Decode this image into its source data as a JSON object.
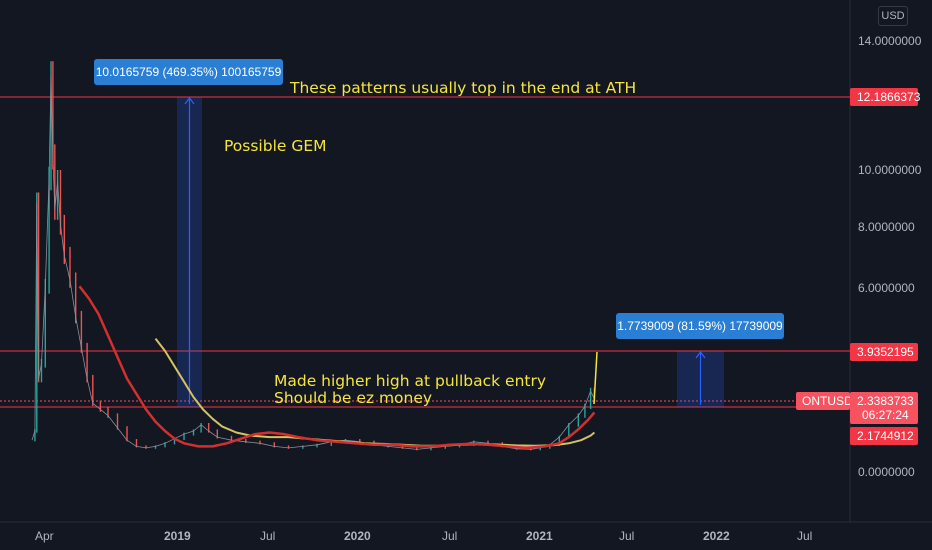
{
  "currency": "USD",
  "chart_data": {
    "type": "candlestick",
    "symbol": "ONTUSD",
    "y_axis": {
      "ticks": [
        "14.0000000",
        "10.0000000",
        "8.0000000",
        "6.0000000",
        "0.0000000"
      ],
      "tick_values": [
        14,
        10,
        8,
        6,
        0
      ]
    },
    "x_axis": {
      "ticks": [
        {
          "label": "Apr",
          "bold": false
        },
        {
          "label": "2019",
          "bold": true
        },
        {
          "label": "Jul",
          "bold": false
        },
        {
          "label": "2020",
          "bold": true
        },
        {
          "label": "Jul",
          "bold": false
        },
        {
          "label": "2021",
          "bold": true
        },
        {
          "label": "Jul",
          "bold": false
        },
        {
          "label": "2022",
          "bold": true
        },
        {
          "label": "Jul",
          "bold": false
        }
      ]
    },
    "price_lines": [
      {
        "label": "12.1866373",
        "value": 12.1866373,
        "color": "#f23645"
      },
      {
        "label": "3.9352195",
        "value": 3.9352195,
        "color": "#f23645"
      },
      {
        "label": "2.1744912",
        "value": 2.1744912,
        "color": "#f23645"
      }
    ],
    "current_price": {
      "symbol": "ONTUSD",
      "value": "2.3383733",
      "countdown": "06:27:24",
      "color": "#f7525f"
    },
    "measurements": [
      {
        "label": "10.0165759 (469.35%) 100165759"
      },
      {
        "label": "1.7739009 (81.59%) 17739009"
      }
    ],
    "annotations": [
      "These patterns usually top in the end at ATH",
      "Possible GEM",
      "Made higher high at pullback entry",
      "Should be ez money"
    ],
    "price_series": [
      {
        "t": 0,
        "v": 1.0
      },
      {
        "t": 3,
        "v": 1.3
      },
      {
        "t": 5,
        "v": 8.7
      },
      {
        "t": 7,
        "v": 3.0
      },
      {
        "t": 10,
        "v": 3.5
      },
      {
        "t": 14,
        "v": 6.0
      },
      {
        "t": 18,
        "v": 9.5
      },
      {
        "t": 20,
        "v": 12.8
      },
      {
        "t": 22,
        "v": 10.2
      },
      {
        "t": 24,
        "v": 8.5
      },
      {
        "t": 27,
        "v": 9.4
      },
      {
        "t": 30,
        "v": 8.0
      },
      {
        "t": 34,
        "v": 7.0
      },
      {
        "t": 40,
        "v": 6.2
      },
      {
        "t": 46,
        "v": 5.0
      },
      {
        "t": 52,
        "v": 4.0
      },
      {
        "t": 58,
        "v": 3.0
      },
      {
        "t": 64,
        "v": 2.2
      },
      {
        "t": 72,
        "v": 2.0
      },
      {
        "t": 80,
        "v": 1.8
      },
      {
        "t": 90,
        "v": 1.4
      },
      {
        "t": 100,
        "v": 1.0
      },
      {
        "t": 110,
        "v": 0.8
      },
      {
        "t": 120,
        "v": 0.75
      },
      {
        "t": 130,
        "v": 0.8
      },
      {
        "t": 140,
        "v": 0.9
      },
      {
        "t": 150,
        "v": 1.05
      },
      {
        "t": 160,
        "v": 1.2
      },
      {
        "t": 170,
        "v": 1.3
      },
      {
        "t": 178,
        "v": 1.5
      },
      {
        "t": 186,
        "v": 1.3
      },
      {
        "t": 195,
        "v": 1.1
      },
      {
        "t": 210,
        "v": 1.0
      },
      {
        "t": 225,
        "v": 0.95
      },
      {
        "t": 240,
        "v": 0.9
      },
      {
        "t": 255,
        "v": 0.8
      },
      {
        "t": 270,
        "v": 0.75
      },
      {
        "t": 285,
        "v": 0.8
      },
      {
        "t": 300,
        "v": 0.85
      },
      {
        "t": 315,
        "v": 0.95
      },
      {
        "t": 330,
        "v": 1.0
      },
      {
        "t": 345,
        "v": 0.95
      },
      {
        "t": 360,
        "v": 0.85
      },
      {
        "t": 375,
        "v": 0.8
      },
      {
        "t": 390,
        "v": 0.75
      },
      {
        "t": 405,
        "v": 0.7
      },
      {
        "t": 420,
        "v": 0.75
      },
      {
        "t": 435,
        "v": 0.8
      },
      {
        "t": 450,
        "v": 0.85
      },
      {
        "t": 465,
        "v": 0.95
      },
      {
        "t": 480,
        "v": 0.9
      },
      {
        "t": 495,
        "v": 0.8
      },
      {
        "t": 510,
        "v": 0.72
      },
      {
        "t": 525,
        "v": 0.7
      },
      {
        "t": 535,
        "v": 0.75
      },
      {
        "t": 545,
        "v": 0.85
      },
      {
        "t": 555,
        "v": 1.1
      },
      {
        "t": 565,
        "v": 1.5
      },
      {
        "t": 575,
        "v": 1.8
      },
      {
        "t": 582,
        "v": 2.1
      },
      {
        "t": 588,
        "v": 2.6
      },
      {
        "t": 592,
        "v": 2.34
      }
    ],
    "ma_red": [
      {
        "t": 50,
        "v": 6.0
      },
      {
        "t": 60,
        "v": 5.6
      },
      {
        "t": 70,
        "v": 5.1
      },
      {
        "t": 80,
        "v": 4.4
      },
      {
        "t": 90,
        "v": 3.7
      },
      {
        "t": 100,
        "v": 3.0
      },
      {
        "t": 110,
        "v": 2.5
      },
      {
        "t": 120,
        "v": 2.0
      },
      {
        "t": 130,
        "v": 1.6
      },
      {
        "t": 140,
        "v": 1.3
      },
      {
        "t": 150,
        "v": 1.05
      },
      {
        "t": 160,
        "v": 0.9
      },
      {
        "t": 175,
        "v": 0.8
      },
      {
        "t": 190,
        "v": 0.8
      },
      {
        "t": 205,
        "v": 0.9
      },
      {
        "t": 220,
        "v": 1.05
      },
      {
        "t": 235,
        "v": 1.2
      },
      {
        "t": 250,
        "v": 1.25
      },
      {
        "t": 265,
        "v": 1.2
      },
      {
        "t": 280,
        "v": 1.1
      },
      {
        "t": 300,
        "v": 1.0
      },
      {
        "t": 320,
        "v": 0.95
      },
      {
        "t": 340,
        "v": 0.9
      },
      {
        "t": 360,
        "v": 0.85
      },
      {
        "t": 380,
        "v": 0.85
      },
      {
        "t": 400,
        "v": 0.8
      },
      {
        "t": 420,
        "v": 0.8
      },
      {
        "t": 440,
        "v": 0.85
      },
      {
        "t": 460,
        "v": 0.88
      },
      {
        "t": 480,
        "v": 0.85
      },
      {
        "t": 500,
        "v": 0.8
      },
      {
        "t": 520,
        "v": 0.75
      },
      {
        "t": 540,
        "v": 0.8
      },
      {
        "t": 555,
        "v": 0.9
      },
      {
        "t": 565,
        "v": 1.1
      },
      {
        "t": 575,
        "v": 1.35
      },
      {
        "t": 585,
        "v": 1.65
      },
      {
        "t": 592,
        "v": 1.9
      }
    ],
    "ma_yellow": [
      {
        "t": 130,
        "v": 4.3
      },
      {
        "t": 140,
        "v": 3.9
      },
      {
        "t": 150,
        "v": 3.4
      },
      {
        "t": 160,
        "v": 2.9
      },
      {
        "t": 170,
        "v": 2.4
      },
      {
        "t": 180,
        "v": 2.0
      },
      {
        "t": 190,
        "v": 1.7
      },
      {
        "t": 200,
        "v": 1.45
      },
      {
        "t": 215,
        "v": 1.25
      },
      {
        "t": 230,
        "v": 1.15
      },
      {
        "t": 250,
        "v": 1.1
      },
      {
        "t": 270,
        "v": 1.1
      },
      {
        "t": 290,
        "v": 1.05
      },
      {
        "t": 310,
        "v": 1.0
      },
      {
        "t": 330,
        "v": 0.95
      },
      {
        "t": 350,
        "v": 0.9
      },
      {
        "t": 370,
        "v": 0.88
      },
      {
        "t": 390,
        "v": 0.85
      },
      {
        "t": 410,
        "v": 0.82
      },
      {
        "t": 430,
        "v": 0.82
      },
      {
        "t": 450,
        "v": 0.85
      },
      {
        "t": 470,
        "v": 0.87
      },
      {
        "t": 490,
        "v": 0.86
      },
      {
        "t": 510,
        "v": 0.83
      },
      {
        "t": 530,
        "v": 0.82
      },
      {
        "t": 550,
        "v": 0.84
      },
      {
        "t": 565,
        "v": 0.9
      },
      {
        "t": 578,
        "v": 1.0
      },
      {
        "t": 588,
        "v": 1.15
      },
      {
        "t": 592,
        "v": 1.25
      }
    ]
  }
}
